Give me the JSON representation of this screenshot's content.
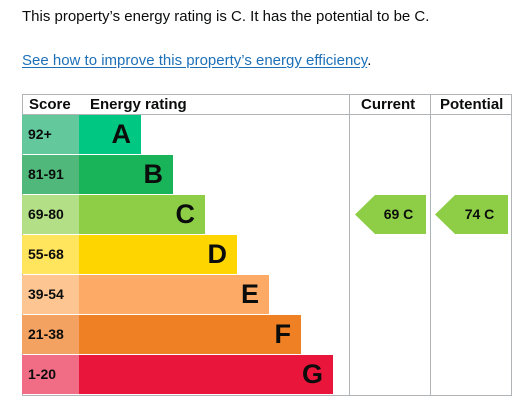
{
  "intro_text": "This property’s energy rating is C. It has the potential to be C.",
  "improve_link": "See how to improve this property’s energy efficiency",
  "improve_link_suffix": ".",
  "table": {
    "headers": {
      "score": "Score",
      "rating": "Energy rating",
      "current": "Current",
      "potential": "Potential"
    },
    "bands": [
      {
        "score": "92+",
        "letter": "A",
        "color": "#00c781",
        "score_color": "#63c99c"
      },
      {
        "score": "81-91",
        "letter": "B",
        "color": "#19b459",
        "score_color": "#4fb87a"
      },
      {
        "score": "69-80",
        "letter": "C",
        "color": "#8dce46",
        "score_color": "#b3df86"
      },
      {
        "score": "55-68",
        "letter": "D",
        "color": "#ffd500",
        "score_color": "#ffe45e"
      },
      {
        "score": "39-54",
        "letter": "E",
        "color": "#fcaa65",
        "score_color": "#fdc592"
      },
      {
        "score": "21-38",
        "letter": "F",
        "color": "#ef8023",
        "score_color": "#f4a261"
      },
      {
        "score": "1-20",
        "letter": "G",
        "color": "#e9153b",
        "score_color": "#f16d86"
      }
    ],
    "current": {
      "value": "69 C",
      "band_index": 2,
      "color": "#8dce46"
    },
    "potential": {
      "value": "74 C",
      "band_index": 2,
      "color": "#8dce46"
    }
  }
}
